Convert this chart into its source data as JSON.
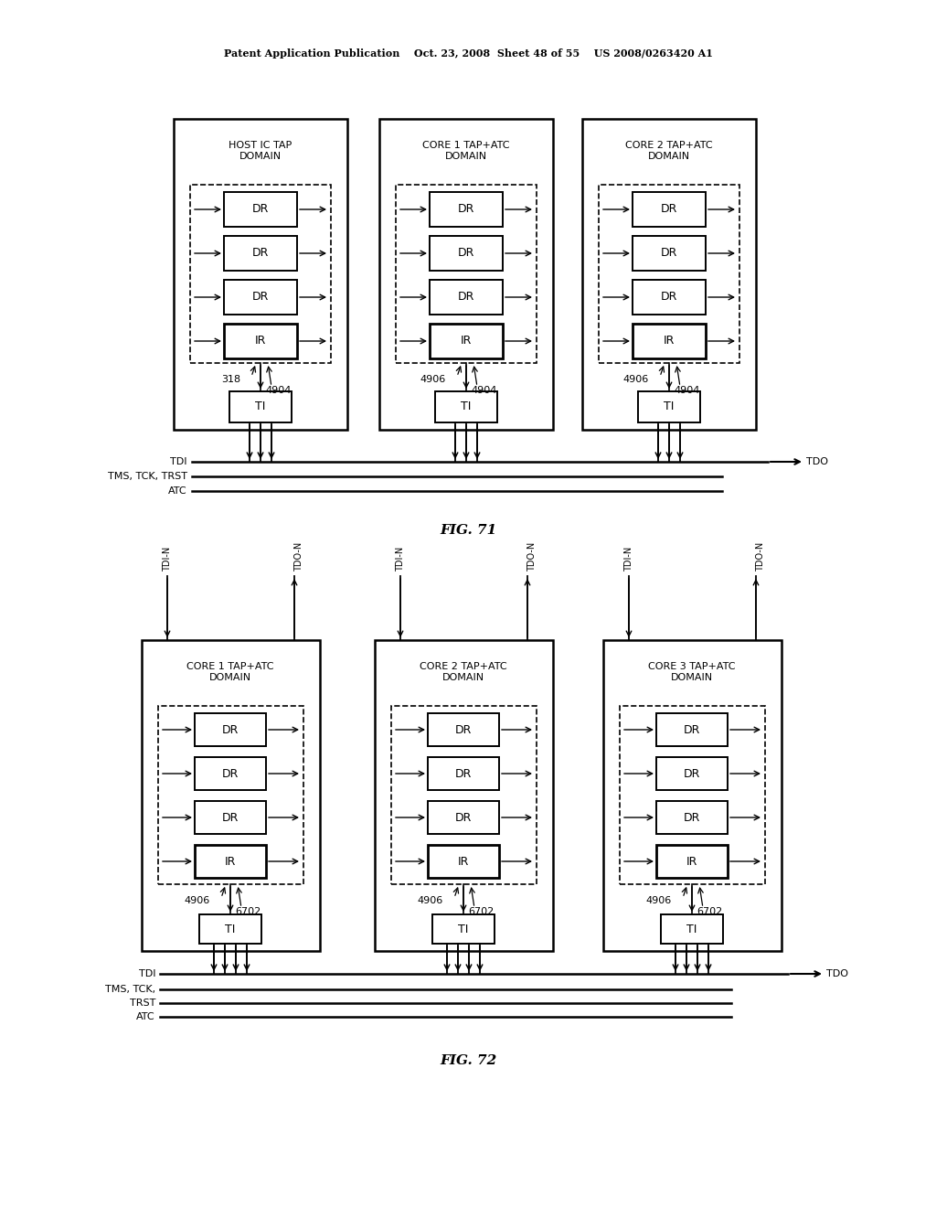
{
  "bg_color": "#ffffff",
  "header": "Patent Application Publication    Oct. 23, 2008  Sheet 48 of 55    US 2008/0263420 A1",
  "fig71_label": "FIG. 71",
  "fig72_label": "FIG. 72",
  "fig71": {
    "domains": [
      {
        "title": "HOST IC TAP\nDOMAIN",
        "label_left": "318",
        "label_right": "4904"
      },
      {
        "title": "CORE 1 TAP+ATC\nDOMAIN",
        "label_left": "4906",
        "label_right": "4904"
      },
      {
        "title": "CORE 2 TAP+ATC\nDOMAIN",
        "label_left": "4906",
        "label_right": "4904"
      }
    ]
  },
  "fig72": {
    "domains": [
      {
        "title": "CORE 1 TAP+ATC\nDOMAIN",
        "label_left": "4906",
        "label_right": "6702",
        "tdi_n": "TDI-N",
        "tdo_n": "TDO-N"
      },
      {
        "title": "CORE 2 TAP+ATC\nDOMAIN",
        "label_left": "4906",
        "label_right": "6702",
        "tdi_n": "TDI-N",
        "tdo_n": "TDO-N"
      },
      {
        "title": "CORE 3 TAP+ATC\nDOMAIN",
        "label_left": "4906",
        "label_right": "6702",
        "tdi_n": "TDI-N",
        "tdo_n": "TDO-N"
      }
    ]
  }
}
